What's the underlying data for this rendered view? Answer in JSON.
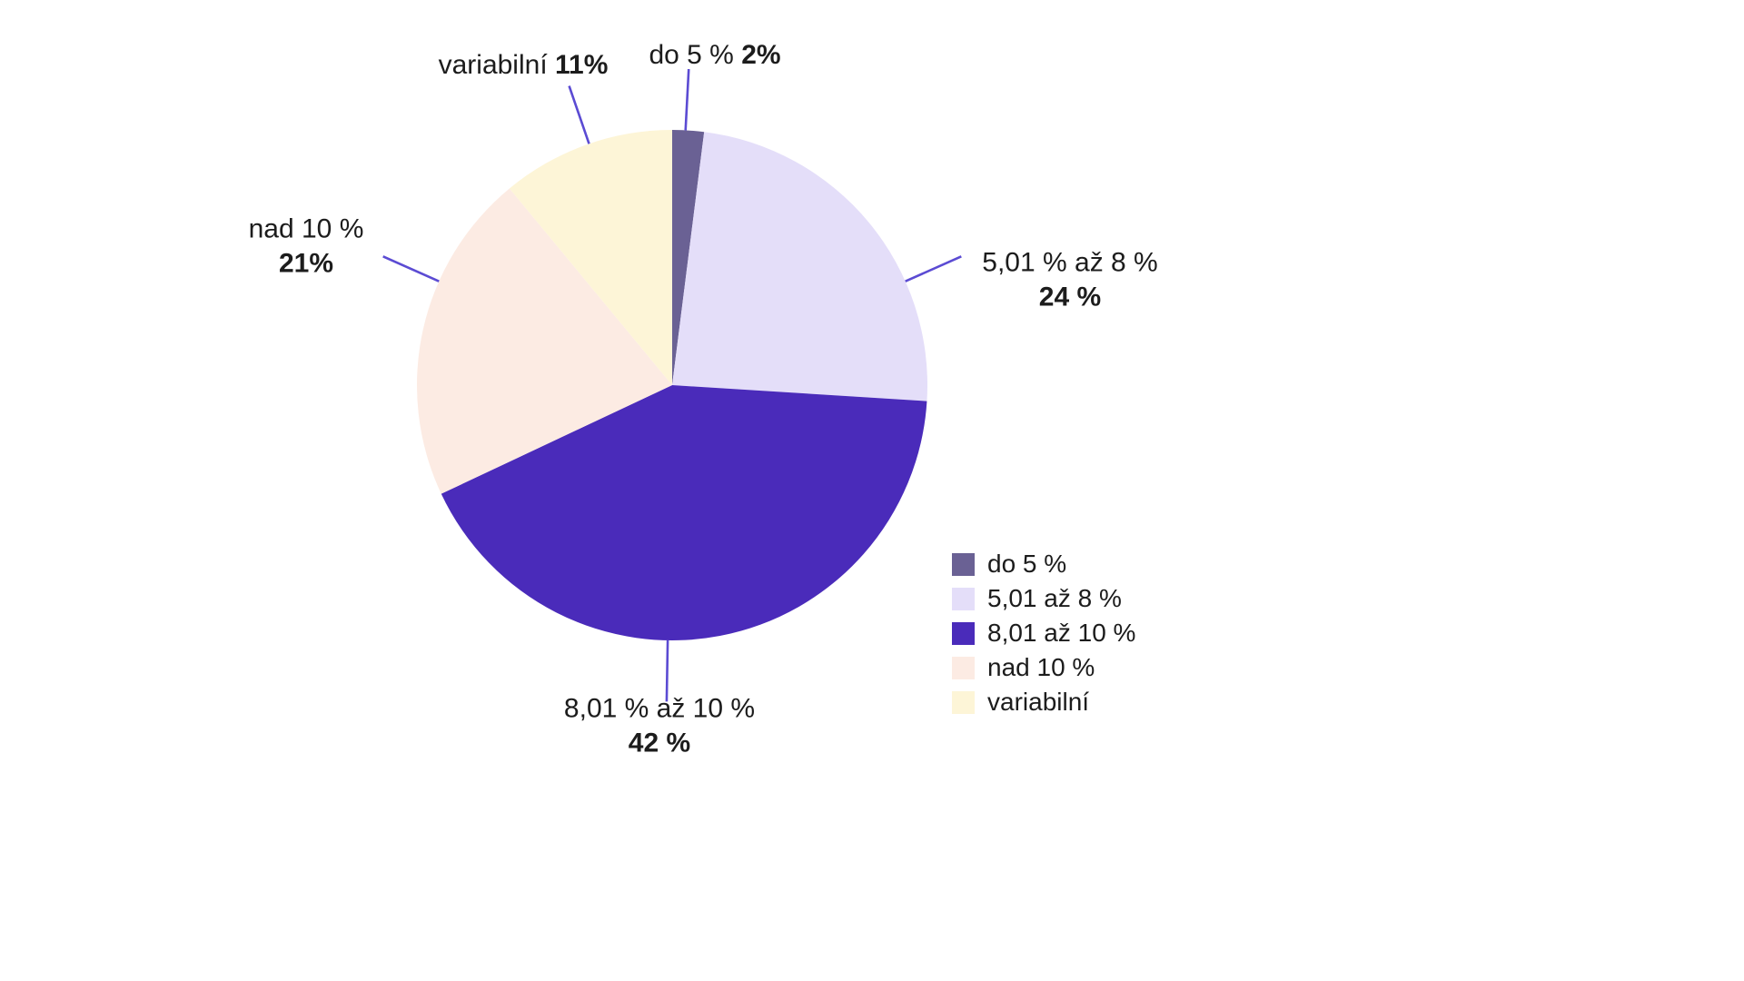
{
  "chart_data": {
    "type": "pie",
    "title": "",
    "start_angle_deg": 0,
    "direction": "clockwise",
    "total": 100,
    "slices": [
      {
        "label": "do 5 %",
        "value": 2,
        "color": "#6a6194",
        "callout_label": "do 5 %",
        "callout_value": "2%"
      },
      {
        "label": "5,01 až 8 %",
        "value": 24,
        "color": "#e4def9",
        "callout_label": "5,01 % až 8 %",
        "callout_value": "24 %"
      },
      {
        "label": "8,01 až 10 %",
        "value": 42,
        "color": "#4a2bba",
        "callout_label": "8,01 % až 10 %",
        "callout_value": "42 %"
      },
      {
        "label": "nad 10 %",
        "value": 21,
        "color": "#fcebe3",
        "callout_label": "nad 10 %",
        "callout_value": "21%"
      },
      {
        "label": "variabilní",
        "value": 11,
        "color": "#fdf5d7",
        "callout_label": "variabilní",
        "callout_value": "11%"
      }
    ],
    "legend": {
      "position": "bottom-right",
      "items": [
        "do 5 %",
        "5,01 až 8 %",
        "8,01 až 10 %",
        "nad 10 %",
        "variabilní"
      ]
    },
    "leader_line_color": "#5b4bd3"
  }
}
